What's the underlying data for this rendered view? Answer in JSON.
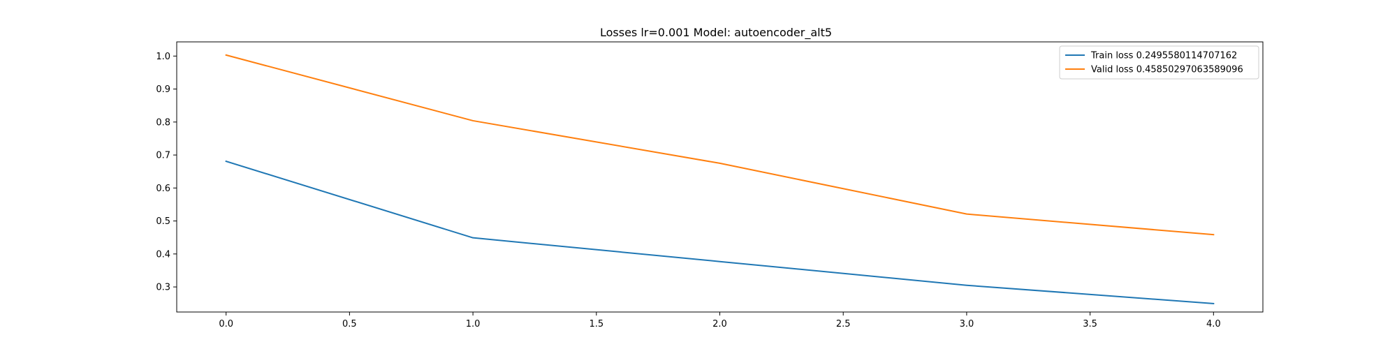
{
  "chart_data": {
    "type": "line",
    "title": "Losses lr=0.001 Model: autoencoder_alt5",
    "xlabel": "",
    "ylabel": "",
    "x": [
      0,
      1,
      2,
      3,
      4
    ],
    "xlim": [
      -0.2,
      4.2
    ],
    "ylim": [
      0.224,
      1.043
    ],
    "x_ticks": [
      0.0,
      0.5,
      1.0,
      1.5,
      2.0,
      2.5,
      3.0,
      3.5,
      4.0
    ],
    "x_tick_labels": [
      "0.0",
      "0.5",
      "1.0",
      "1.5",
      "2.0",
      "2.5",
      "3.0",
      "3.5",
      "4.0"
    ],
    "y_ticks": [
      0.3,
      0.4,
      0.5,
      0.6,
      0.7,
      0.8,
      0.9,
      1.0
    ],
    "y_tick_labels": [
      "0.3",
      "0.4",
      "0.5",
      "0.6",
      "0.7",
      "0.8",
      "0.9",
      "1.0"
    ],
    "grid": false,
    "legend_position": "top-right",
    "series": [
      {
        "name": "Train loss 0.2495580114707162",
        "color": "#1f77b4",
        "values": [
          0.681,
          0.449,
          0.377,
          0.305,
          0.2495580114707162
        ]
      },
      {
        "name": "Valid loss 0.45850297063589096",
        "color": "#ff7f0e",
        "values": [
          1.003,
          0.804,
          0.675,
          0.521,
          0.45850297063589096
        ]
      }
    ]
  }
}
